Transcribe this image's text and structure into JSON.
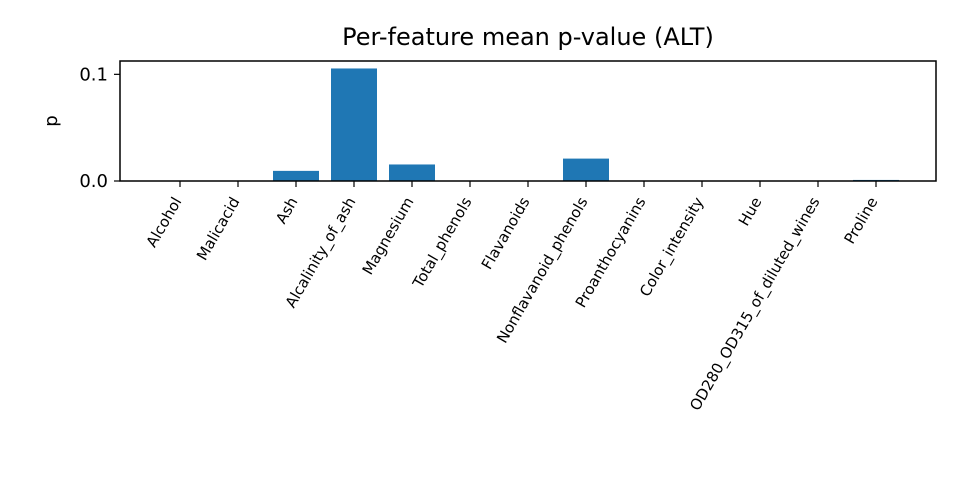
{
  "chart_data": {
    "type": "bar",
    "title": "Per-feature mean p-value (ALT)",
    "xlabel": "",
    "ylabel": "p",
    "categories": [
      "Alcohol",
      "Malicacid",
      "Ash",
      "Alcalinity_of_ash",
      "Magnesium",
      "Total_phenols",
      "Flavanoids",
      "Nonflavanoid_phenols",
      "Proanthocyanins",
      "Color_intensity",
      "Hue",
      "OD280_OD315_of_diluted_wines",
      "Proline"
    ],
    "values": [
      0.0,
      0.0,
      0.0095,
      0.1055,
      0.0155,
      0.0,
      0.0,
      0.021,
      0.0,
      0.0,
      0.0,
      0.0,
      0.001
    ],
    "ylim": [
      0,
      0.1125
    ],
    "yticks": [
      0.0,
      0.1
    ],
    "ytick_labels": [
      "0.0",
      "0.1"
    ],
    "grid": false,
    "legend": "none",
    "bar_color": "#1f77b4"
  }
}
